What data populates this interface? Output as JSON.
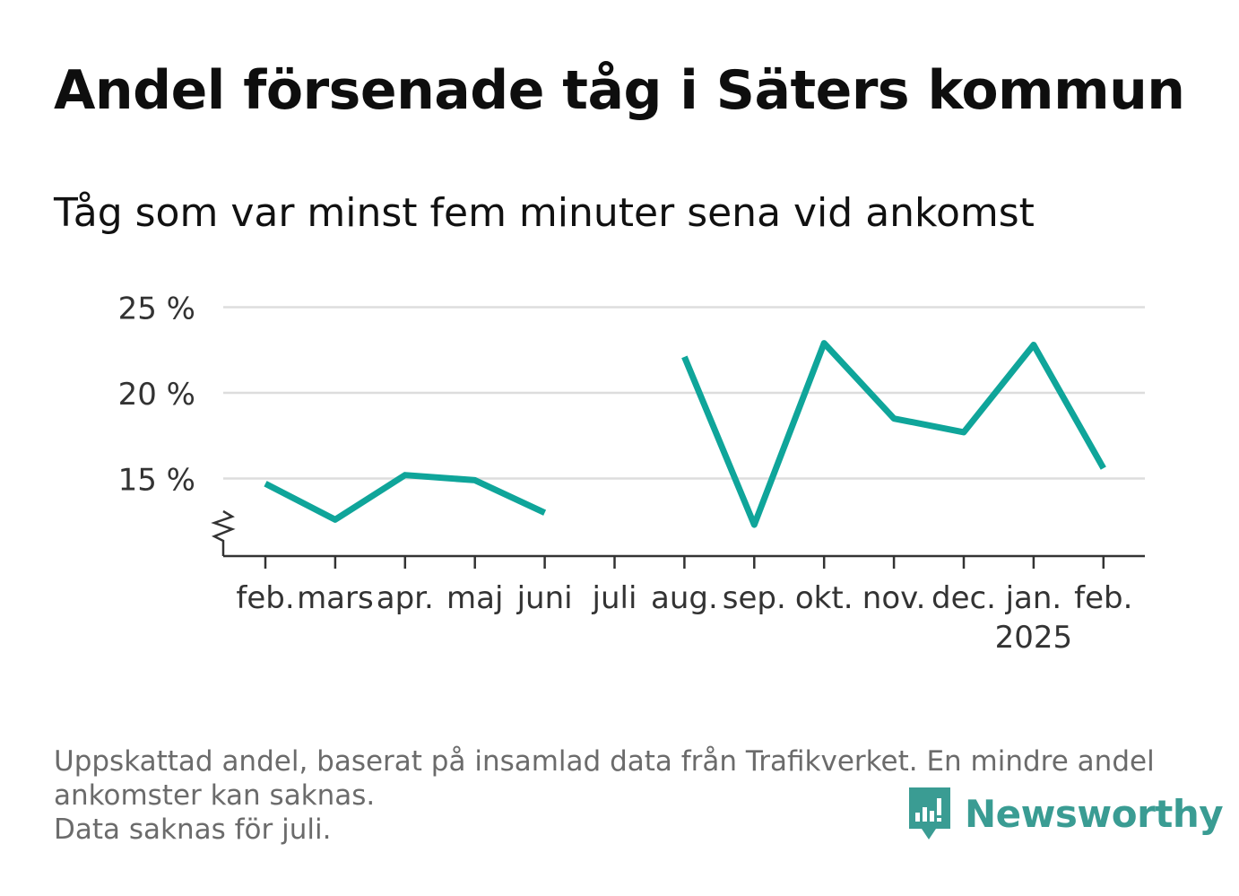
{
  "title": "Andel försenade tåg i Säters kommun",
  "subtitle": "Tåg som var minst fem minuter sena vid ankomst",
  "footnote": {
    "line1": "Uppskattad andel, baserat på insamlad data från Trafikverket. En mindre andel",
    "line2": "ankomster kan saknas.",
    "line3": "Data saknas för juli."
  },
  "brand": {
    "name": "Newsworthy",
    "color": "#3a9c93",
    "icon": "newsworthy-logo-icon"
  },
  "colors": {
    "line": "#0fa59a",
    "grid": "#dddddd",
    "axis": "#333333"
  },
  "chart_data": {
    "type": "line",
    "categories": [
      "feb.",
      "mars",
      "apr.",
      "maj",
      "juni",
      "juli",
      "aug.",
      "sep.",
      "okt.",
      "nov.",
      "dec.",
      "jan.",
      "feb."
    ],
    "year_label": {
      "index": 11,
      "text": "2025"
    },
    "series": [
      {
        "values": [
          14.7,
          12.6,
          15.2,
          14.9,
          13.0,
          null,
          22.1,
          12.3,
          22.9,
          18.5,
          17.7,
          22.8,
          15.6
        ]
      }
    ],
    "yticks": [
      15,
      20,
      25
    ],
    "ytick_labels": [
      "15 %",
      "20 %",
      "25 %"
    ],
    "ylim": [
      10.5,
      25
    ],
    "y_axis_break": true,
    "grid": true,
    "legend": "none",
    "xlabel": "",
    "ylabel": ""
  }
}
